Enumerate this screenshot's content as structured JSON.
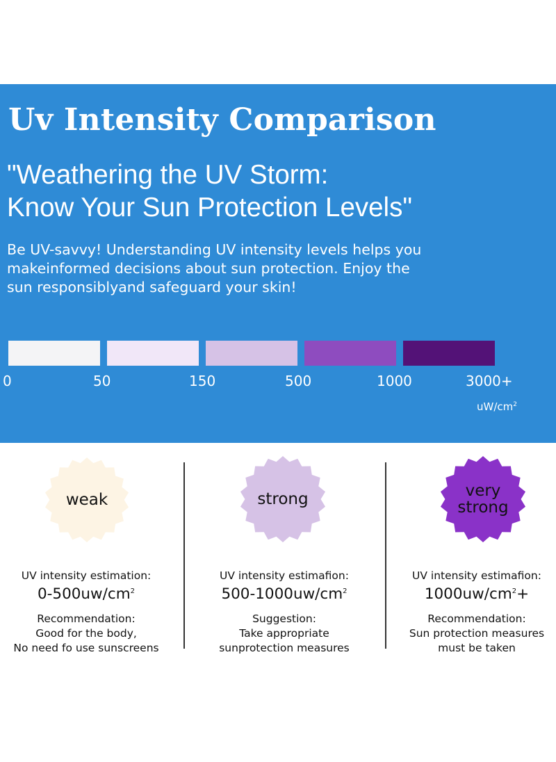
{
  "banner": {
    "title": "Uv Intensity Comparison",
    "headline_line1": "\"Weathering the UV Storm:",
    "headline_line2": "Know Your Sun Protection Levels\"",
    "intro_line1": "Be UV-savvy! Understanding UV intensity levels helps you",
    "intro_line2": "makeinformed decisions about sun protection. Enjoy the",
    "intro_line3": "sun responsiblyand safeguard your skin!",
    "scale": {
      "swatch_colors": [
        "#f4f4f6",
        "#f1e7f8",
        "#d6c2e6",
        "#8e4cbf",
        "#531277"
      ],
      "ticks": [
        "0",
        "50",
        "150",
        "500",
        "1000",
        "3000+"
      ],
      "unit_base": "uW/cm",
      "unit_exp": "2"
    },
    "background_color": "#2f8bd6"
  },
  "levels": [
    {
      "badge_label": "weak",
      "badge_color": "#fdf4e4",
      "estimation_label": "UV intensity estimation:",
      "range_base": "0-500uw/cm",
      "range_exp": "2",
      "range_suffix": "",
      "advice_title": "Recommendation:",
      "advice_line1": "Good for the body,",
      "advice_line2": "No need fo use sunscreens"
    },
    {
      "badge_label": "strong",
      "badge_color": "#d6c2e6",
      "estimation_label": "UV intensity estimafion:",
      "range_base": "500-1000uw/cm",
      "range_exp": "2",
      "range_suffix": "",
      "advice_title": "Suggestion:",
      "advice_line1": "Take appropriate",
      "advice_line2": "sunprotection measures"
    },
    {
      "badge_label_line1": "very",
      "badge_label_line2": "strong",
      "badge_color": "#8a32c8",
      "estimation_label": "UV intensity estimafion:",
      "range_base": "1000uw/cm",
      "range_exp": "2",
      "range_suffix": "+",
      "advice_title": "Recommendation:",
      "advice_line1": "Sun protection measures",
      "advice_line2": "must be taken"
    }
  ]
}
